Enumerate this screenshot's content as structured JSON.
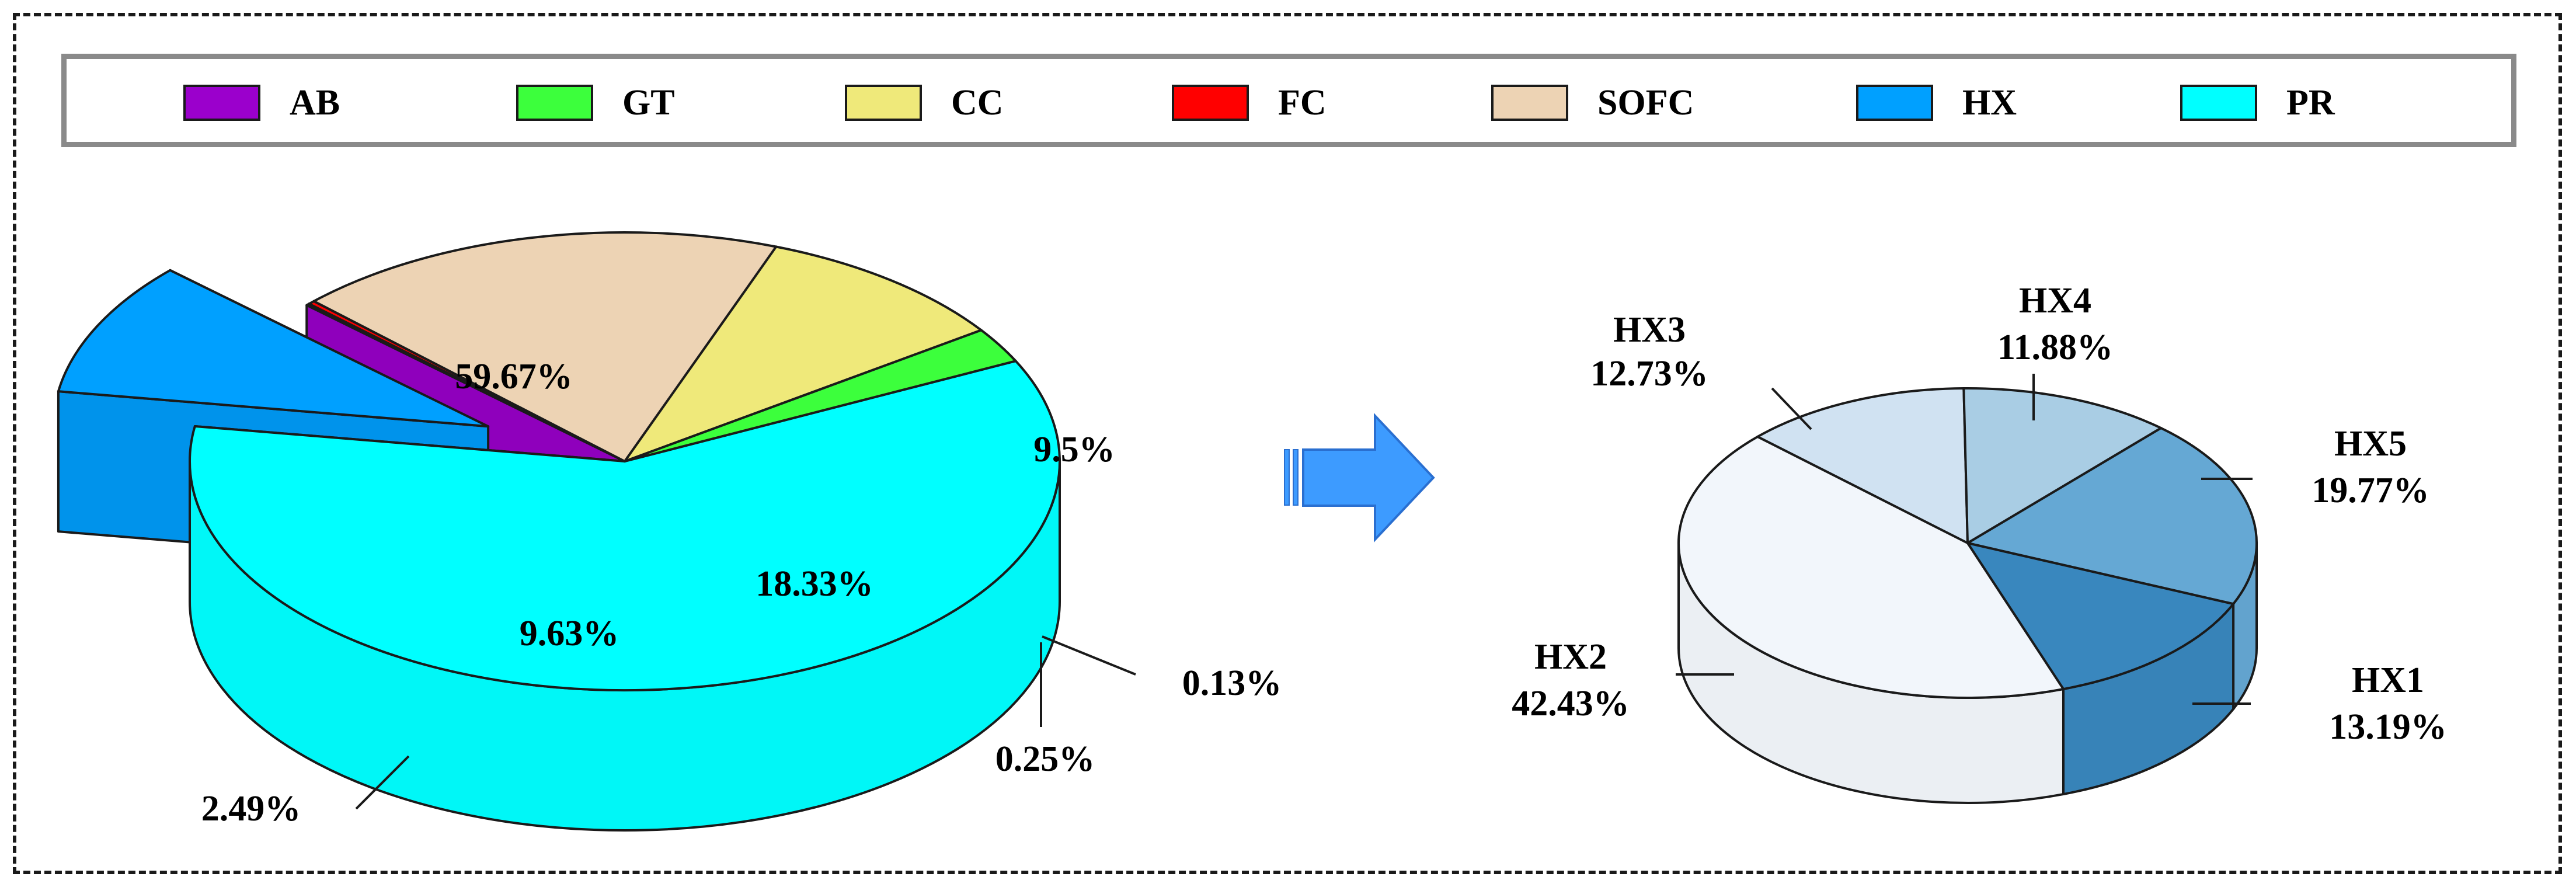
{
  "colors": {
    "AB": "#9b00cc",
    "GT": "#3cff3c",
    "CC": "#efe97a",
    "FC": "#ff0000",
    "SOFC": "#edd3b4",
    "HX": "#00a0ff",
    "PR": "#00ffff",
    "arrow": "#3d9bff",
    "HX1": "#3987be",
    "HX2": "#f2f6fb",
    "HX3": "#d0e2f2",
    "HX4": "#a9cde4",
    "HX5": "#65a8d4"
  },
  "legend": [
    {
      "key": "AB",
      "label": "AB"
    },
    {
      "key": "GT",
      "label": "GT"
    },
    {
      "key": "CC",
      "label": "CC"
    },
    {
      "key": "FC",
      "label": "FC"
    },
    {
      "key": "SOFC",
      "label": "SOFC"
    },
    {
      "key": "HX",
      "label": "HX"
    },
    {
      "key": "PR",
      "label": "PR"
    }
  ],
  "chart_data": [
    {
      "type": "pie",
      "style": "3d-exploded",
      "slices": [
        {
          "name": "PR",
          "label": "59.67%",
          "value": 59.67
        },
        {
          "name": "HX",
          "label": "9.5%",
          "value": 9.5
        },
        {
          "name": "AB",
          "label": "0.13%",
          "value": 0.13
        },
        {
          "name": "FC",
          "label": "0.25%",
          "value": 0.25
        },
        {
          "name": "SOFC",
          "label": "18.33%",
          "value": 18.33
        },
        {
          "name": "CC",
          "label": "9.63%",
          "value": 9.63
        },
        {
          "name": "GT",
          "label": "2.49%",
          "value": 2.49
        }
      ]
    },
    {
      "type": "pie",
      "style": "3d",
      "slices": [
        {
          "name": "HX3",
          "label": "12.73%",
          "value": 12.73
        },
        {
          "name": "HX4",
          "label": "11.88%",
          "value": 11.88
        },
        {
          "name": "HX5",
          "label": "19.77%",
          "value": 19.77
        },
        {
          "name": "HX1",
          "label": "13.19%",
          "value": 13.19
        },
        {
          "name": "HX2",
          "label": "42.43%",
          "value": 42.43
        }
      ]
    }
  ]
}
